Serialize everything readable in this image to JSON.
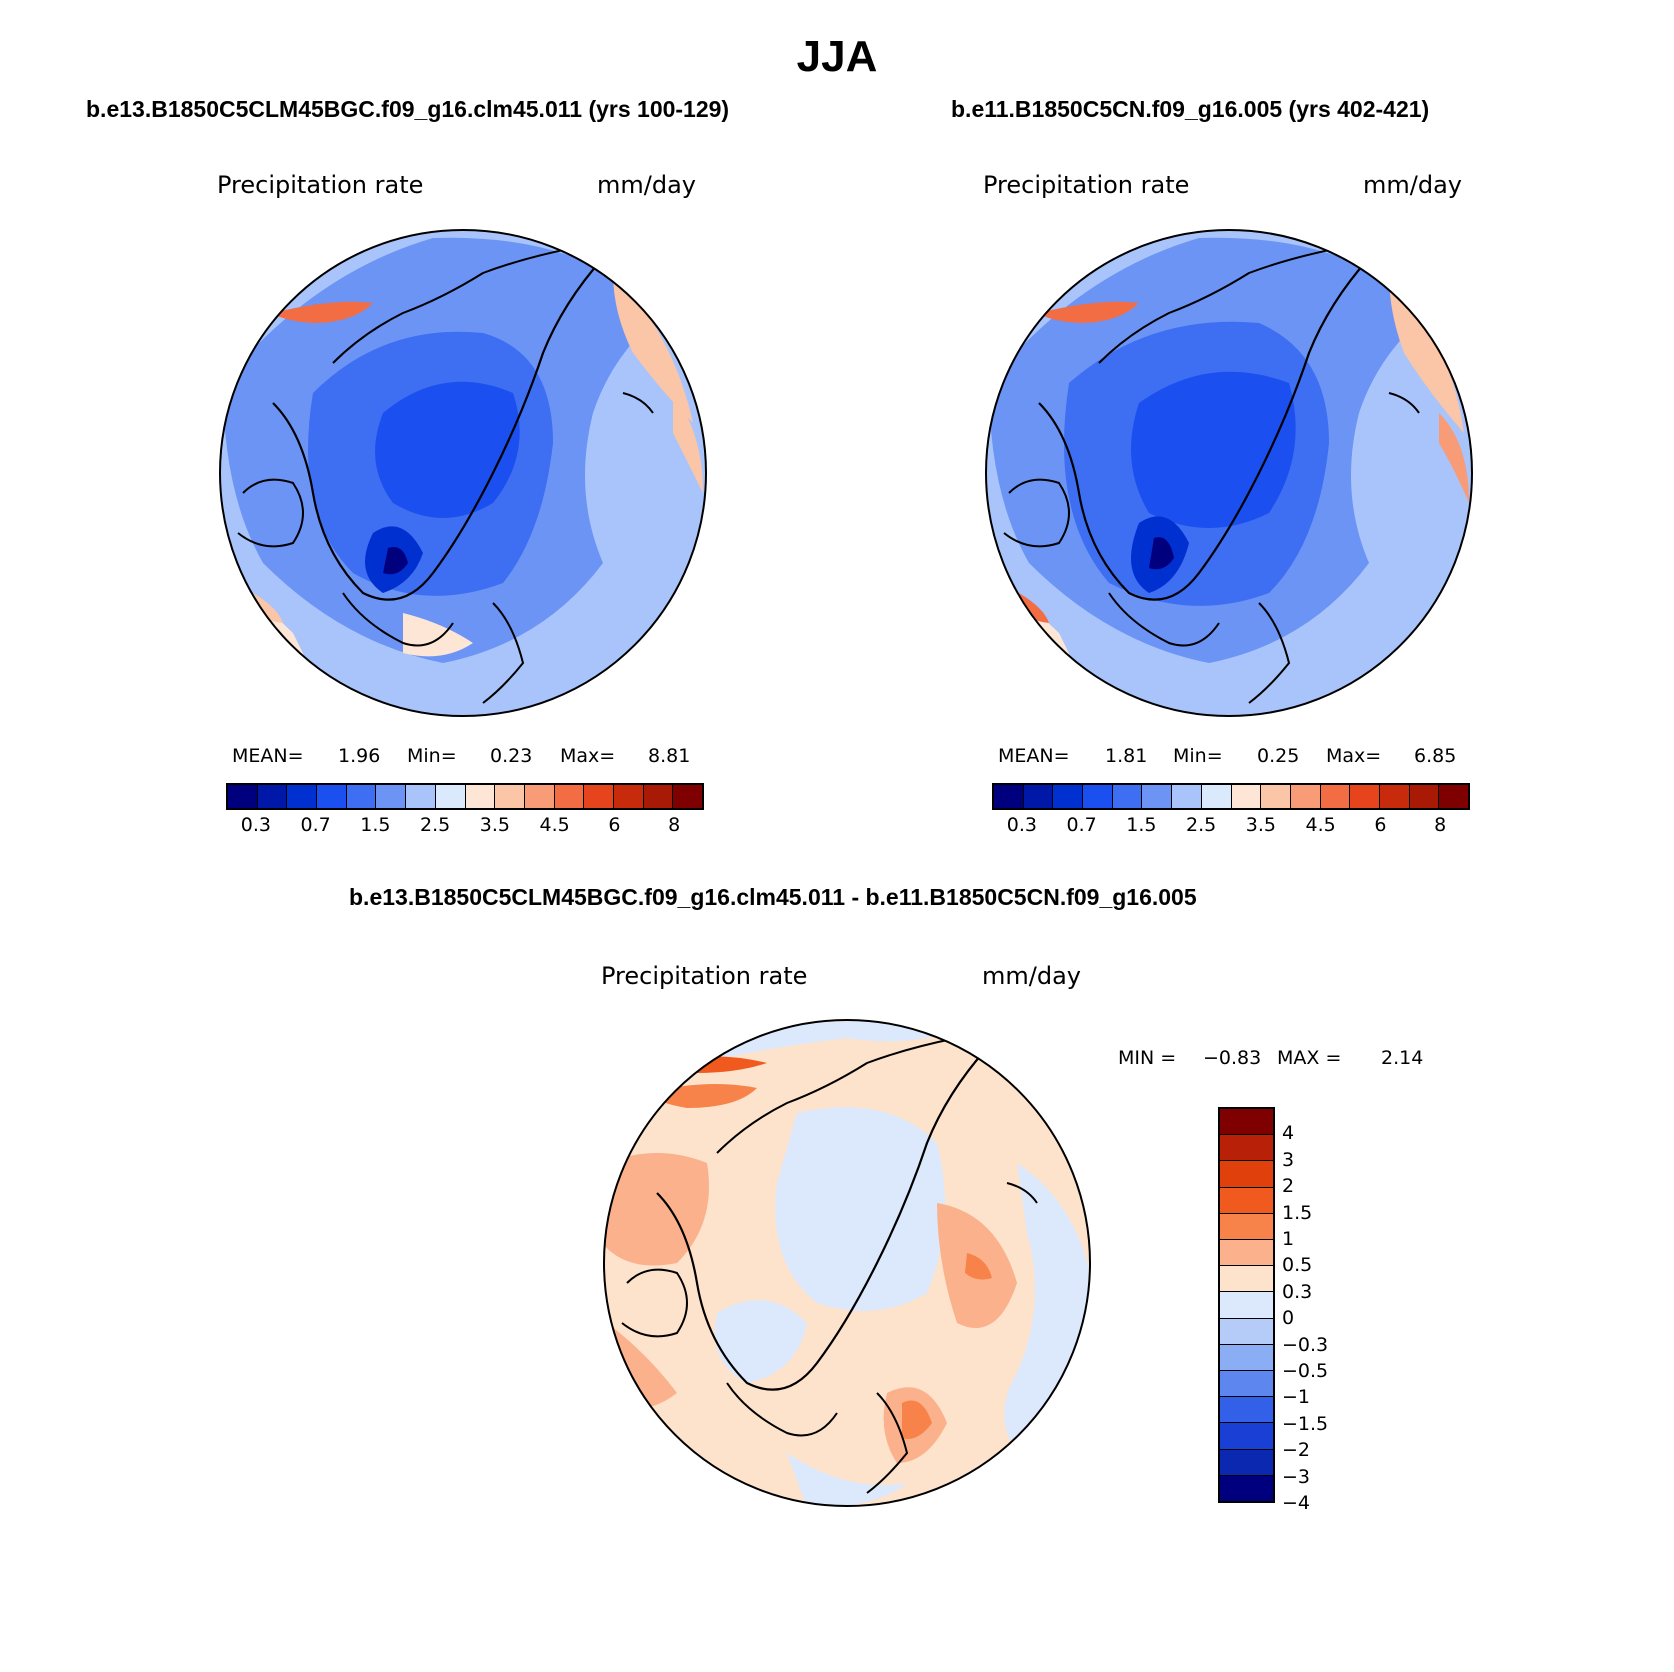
{
  "title": "JJA",
  "panels": [
    {
      "run_title": "b.e13.B1850C5CLM45BGC.f09_g16.clm45.011 (yrs 100-129)",
      "variable": "Precipitation rate",
      "units": "mm/day",
      "mean_label": "MEAN=",
      "mean": "1.96",
      "min_label": "Min=",
      "min": "0.23",
      "max_label": "Max=",
      "max": "8.81"
    },
    {
      "run_title": "b.e11.B1850C5CN.f09_g16.005 (yrs 402-421)",
      "variable": "Precipitation rate",
      "units": "mm/day",
      "mean_label": "MEAN=",
      "mean": "1.81",
      "min_label": "Min=",
      "min": "0.25",
      "max_label": "Max=",
      "max": "6.85"
    }
  ],
  "diff": {
    "title": "b.e13.B1850C5CLM45BGC.f09_g16.clm45.011 - b.e11.B1850C5CN.f09_g16.005",
    "variable": "Precipitation rate",
    "units": "mm/day",
    "min_label": "MIN =",
    "min": "−0.83",
    "max_label": "MAX =",
    "max": "2.14"
  },
  "colorbar_abs": {
    "colors": [
      "#00007f",
      "#0018a8",
      "#0030d0",
      "#1c4ff0",
      "#3e6ef2",
      "#6b94f5",
      "#a8c4fa",
      "#dbe9fd",
      "#fde6d5",
      "#fbc5a8",
      "#f89b77",
      "#f36d44",
      "#e6441c",
      "#c82a0c",
      "#a81a06",
      "#7f0000"
    ],
    "tick_labels": [
      "0.3",
      "0.7",
      "1.5",
      "2.5",
      "3.5",
      "4.5",
      "6",
      "8"
    ]
  },
  "colorbar_diff": {
    "colors": [
      "#7f0000",
      "#b82008",
      "#e0400c",
      "#f05a1e",
      "#f8834a",
      "#fbb18c",
      "#fde2cc",
      "#dce9fc",
      "#b5ccf8",
      "#8aadf4",
      "#5d86ef",
      "#3360e8",
      "#1a3fd4",
      "#0a28b0",
      "#00007f"
    ],
    "tick_labels": [
      "4",
      "3",
      "2",
      "1.5",
      "1",
      "0.5",
      "0.3",
      "0",
      "−0.3",
      "−0.5",
      "−1",
      "−1.5",
      "−2",
      "−3",
      "−4"
    ]
  }
}
